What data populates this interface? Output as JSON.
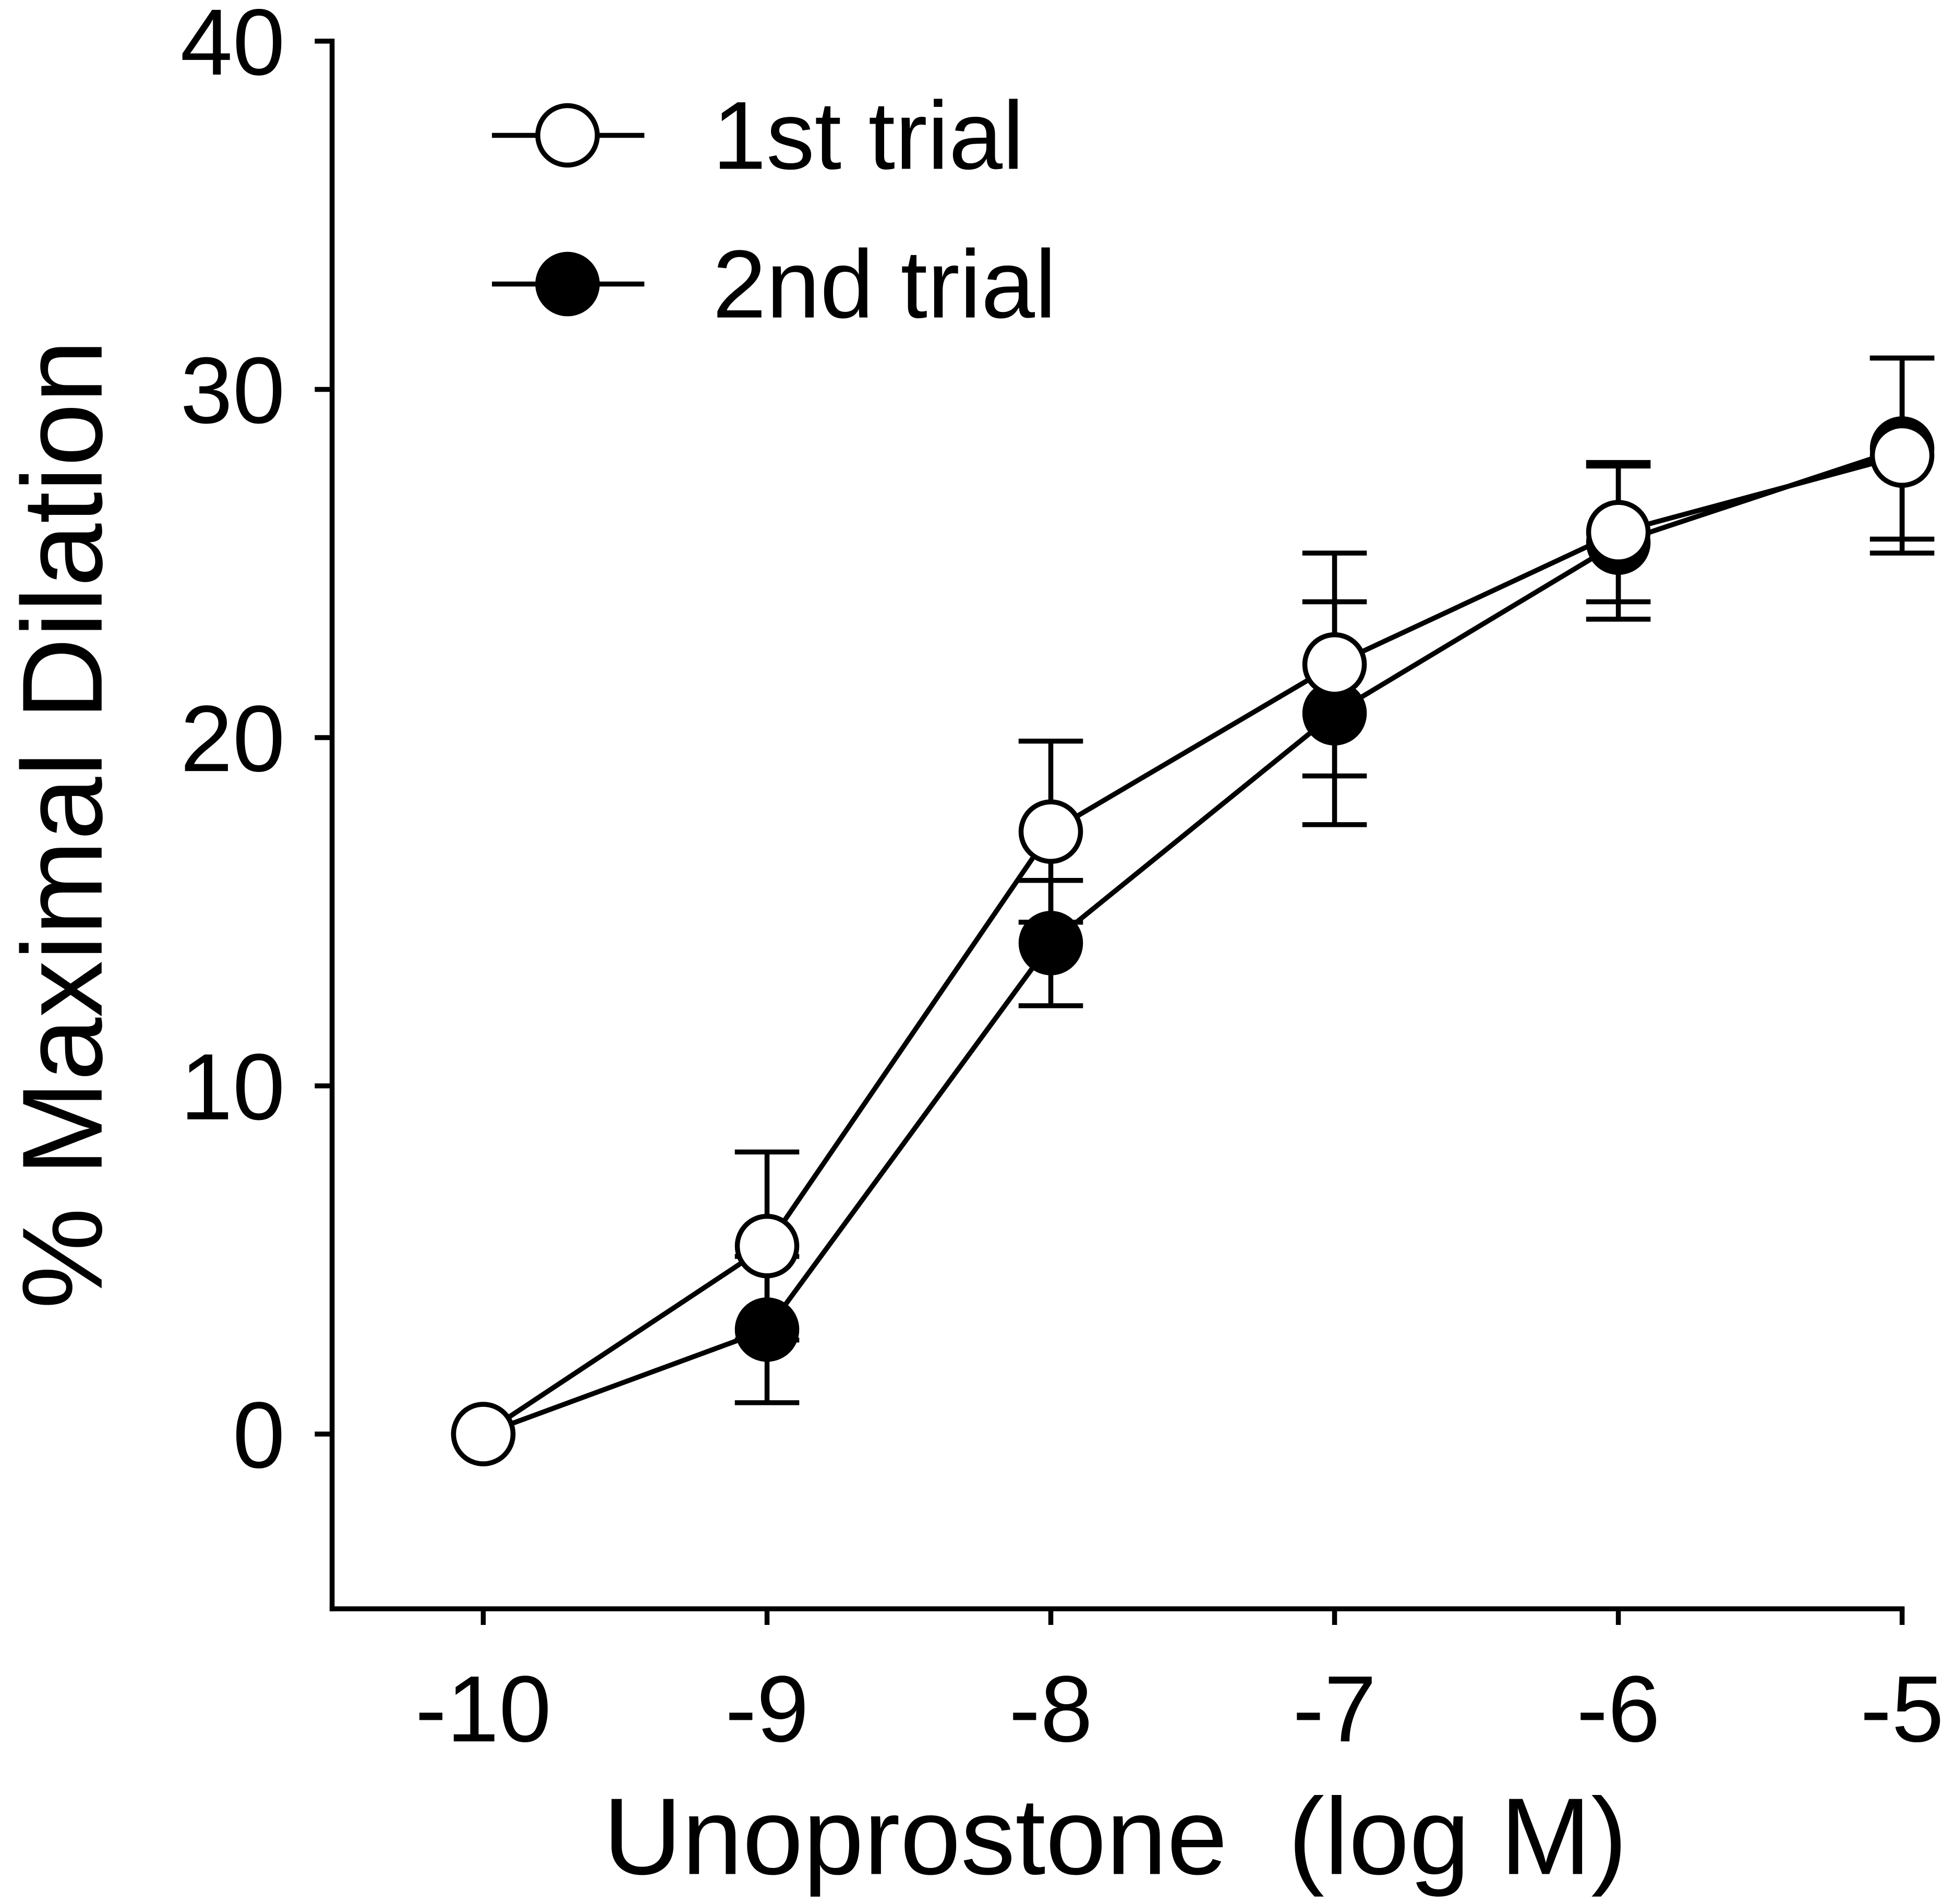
{
  "chart_data": {
    "type": "line",
    "title": "",
    "xlabel": "Unoprostone  (log M)",
    "ylabel": "% Maximal Dilation",
    "xlim": [
      -10.5,
      -5
    ],
    "ylim": [
      -5,
      40
    ],
    "x": [
      -10,
      -9,
      -8,
      -7,
      -6,
      -5
    ],
    "xticks": [
      "-10",
      "-9",
      "-8",
      "-7",
      "-6",
      "-5"
    ],
    "yticks": [
      "0",
      "10",
      "20",
      "30",
      "40"
    ],
    "ytick_values": [
      0,
      10,
      20,
      30,
      40
    ],
    "legend_position": "top-left",
    "series": [
      {
        "name": "1st trial",
        "marker": "open-circle",
        "values": [
          0,
          5.4,
          17.3,
          22.1,
          25.9,
          28.1
        ],
        "errors": [
          0,
          2.7,
          2.6,
          3.2,
          2.0,
          2.8
        ]
      },
      {
        "name": "2nd trial",
        "marker": "filled-circle",
        "values": [
          0,
          3.0,
          14.1,
          20.7,
          25.6,
          28.3
        ],
        "errors": [
          0,
          2.1,
          1.8,
          3.2,
          2.2,
          2.6
        ]
      }
    ]
  }
}
